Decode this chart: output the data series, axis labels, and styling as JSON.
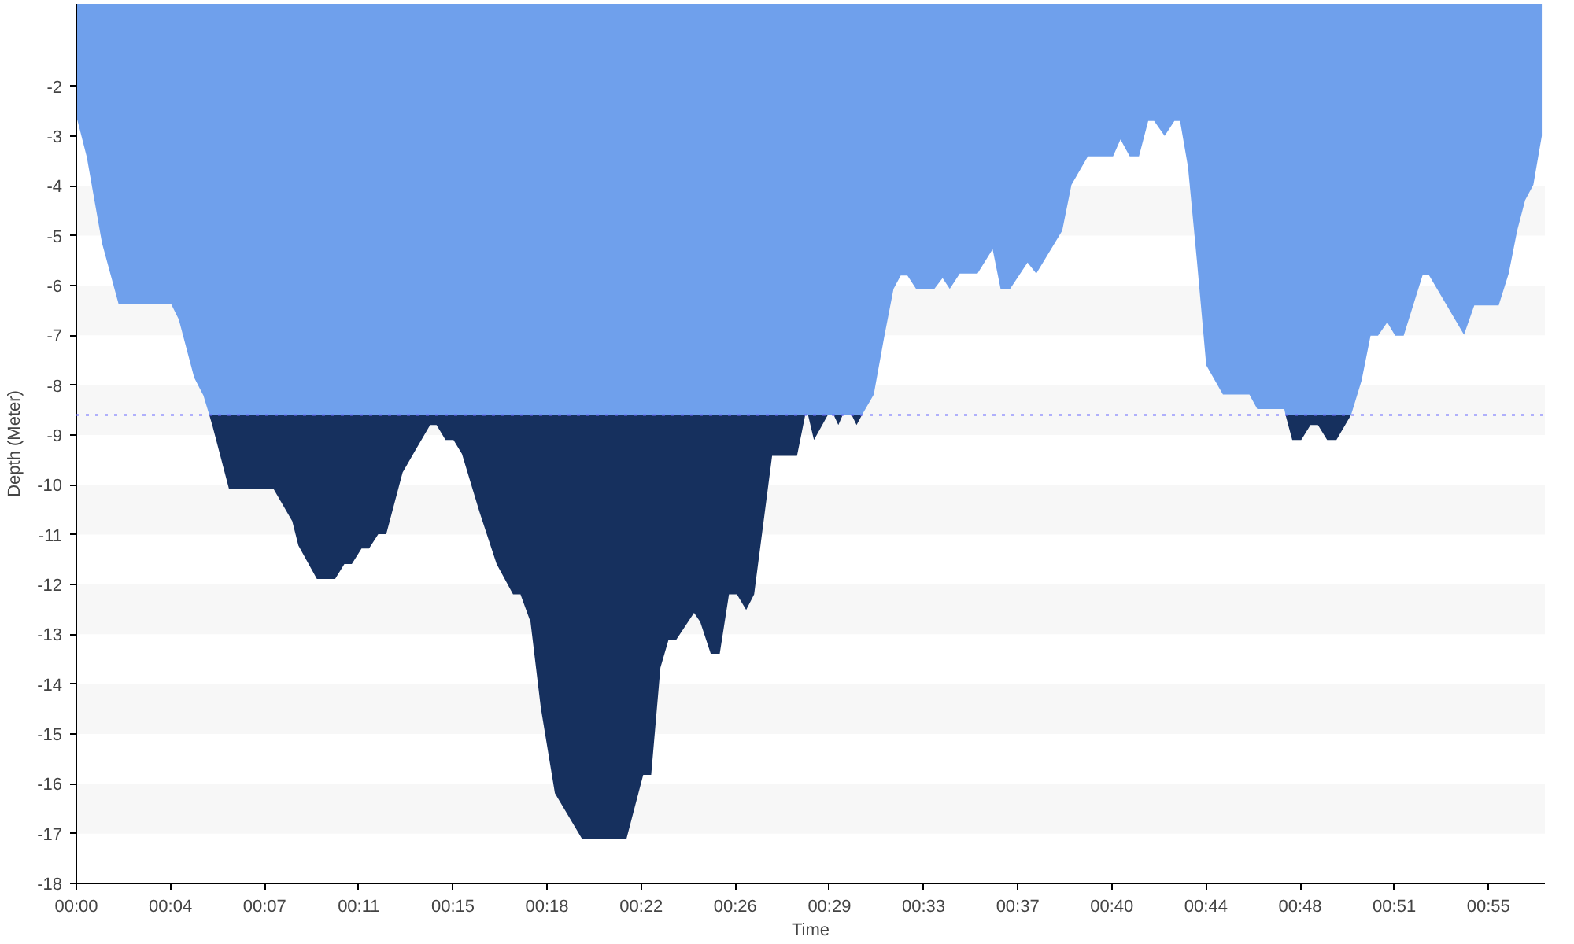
{
  "chart_data": {
    "type": "area",
    "xlabel": "Time",
    "ylabel": "Depth (Meter)",
    "xlim": [
      0,
      57.2
    ],
    "ylim": [
      -18,
      -0.35
    ],
    "xticks": [
      {
        "value": 0,
        "label": "00:00"
      },
      {
        "value": 3.667,
        "label": "00:04"
      },
      {
        "value": 7.333,
        "label": "00:07"
      },
      {
        "value": 11,
        "label": "00:11"
      },
      {
        "value": 14.667,
        "label": "00:15"
      },
      {
        "value": 18.333,
        "label": "00:18"
      },
      {
        "value": 22,
        "label": "00:22"
      },
      {
        "value": 25.667,
        "label": "00:26"
      },
      {
        "value": 29.333,
        "label": "00:29"
      },
      {
        "value": 33,
        "label": "00:33"
      },
      {
        "value": 36.667,
        "label": "00:37"
      },
      {
        "value": 40.333,
        "label": "00:40"
      },
      {
        "value": 44,
        "label": "00:44"
      },
      {
        "value": 47.667,
        "label": "00:48"
      },
      {
        "value": 51.333,
        "label": "00:51"
      },
      {
        "value": 55,
        "label": "00:55"
      }
    ],
    "yticks": [
      -18,
      -17,
      -16,
      -15,
      -14,
      -13,
      -12,
      -11,
      -10,
      -9,
      -8,
      -7,
      -6,
      -5,
      -4,
      -3,
      -2
    ],
    "grid": false,
    "ref_lines": [
      {
        "axis": "y",
        "value": -8.6,
        "color": "#6b6bff",
        "line_style": "dotted"
      }
    ],
    "bands": [
      {
        "axis": "y",
        "from": -5,
        "to": -4,
        "color": "#f7f7f7"
      },
      {
        "axis": "y",
        "from": -7,
        "to": -6,
        "color": "#f7f7f7"
      },
      {
        "axis": "y",
        "from": -9,
        "to": -8,
        "color": "#f7f7f7"
      },
      {
        "axis": "y",
        "from": -11,
        "to": -10,
        "color": "#f7f7f7"
      },
      {
        "axis": "y",
        "from": -13,
        "to": -12,
        "color": "#f7f7f7"
      },
      {
        "axis": "y",
        "from": -15,
        "to": -14,
        "color": "#f7f7f7"
      },
      {
        "axis": "y",
        "from": -17,
        "to": -16,
        "color": "#f7f7f7"
      }
    ],
    "series": [
      {
        "color": "#6fa0ec",
        "x": [
          0,
          0.41,
          1.0,
          1.65,
          3.7,
          3.99,
          4.59,
          4.95,
          5.18,
          30.6,
          31.06,
          31.46,
          31.83,
          32.11,
          32.37,
          32.71,
          33.42,
          33.74,
          34.02,
          34.41,
          35.1,
          35.69,
          36.0,
          36.37,
          37.05,
          37.39,
          38.4,
          38.76,
          39.4,
          40.38,
          40.67,
          41.03,
          41.39,
          41.75,
          41.98,
          42.39,
          42.77,
          42.99,
          43.3,
          43.65,
          44.01,
          44.66,
          45.69,
          46.0,
          47.05,
          47.1,
          49.65,
          50.06,
          50.41,
          50.7,
          51.06,
          51.37,
          51.7,
          52.44,
          52.68,
          54.05,
          54.45,
          55.4,
          55.79,
          56.12,
          56.43,
          56.75,
          57.08
        ],
        "values": [
          -2.6,
          -3.43,
          -5.15,
          -6.38,
          -6.38,
          -6.68,
          -7.85,
          -8.21,
          -8.6,
          -8.6,
          -8.19,
          -7.05,
          -6.07,
          -5.8,
          -5.8,
          -6.07,
          -6.07,
          -5.85,
          -6.07,
          -5.76,
          -5.76,
          -5.27,
          -6.07,
          -6.07,
          -5.54,
          -5.76,
          -4.9,
          -3.98,
          -3.41,
          -3.41,
          -3.07,
          -3.41,
          -3.41,
          -2.7,
          -2.7,
          -3.0,
          -2.7,
          -2.7,
          -3.62,
          -5.52,
          -7.6,
          -8.19,
          -8.19,
          -8.48,
          -8.48,
          -8.6,
          -8.6,
          -7.91,
          -7.01,
          -7.01,
          -6.74,
          -7.01,
          -7.01,
          -5.79,
          -5.79,
          -6.99,
          -6.4,
          -6.4,
          -5.76,
          -4.9,
          -4.29,
          -3.98,
          -3.0
        ]
      },
      {
        "color": "#16305e",
        "x": [
          5.18,
          5.31,
          5.95,
          7.69,
          8.41,
          8.65,
          9.37,
          10.08,
          10.44,
          10.73,
          11.11,
          11.4,
          11.76,
          12.07,
          12.71,
          13.19,
          13.78,
          14.03,
          14.38,
          14.69,
          15.02,
          15.7,
          16.37,
          17.01,
          17.3,
          17.69,
          18.09,
          18.64,
          19.69,
          21.43,
          22.08,
          22.39,
          22.75,
          23.06,
          23.35,
          24.06,
          24.3,
          24.71,
          25.06,
          25.42,
          25.73,
          26.09,
          26.4,
          27.1,
          28.07,
          28.39,
          28.5,
          28.73,
          29.27,
          29.5,
          29.68,
          29.85,
          30.2,
          30.39,
          30.6,
          null,
          47.1,
          47.36,
          47.71,
          48.07,
          48.36,
          48.72,
          49.08,
          49.65
        ],
        "values": [
          -8.6,
          -8.83,
          -10.09,
          -10.09,
          -10.73,
          -11.22,
          -11.89,
          -11.89,
          -11.59,
          -11.59,
          -11.28,
          -11.28,
          -10.99,
          -10.99,
          -9.75,
          -9.32,
          -8.8,
          -8.8,
          -9.1,
          -9.1,
          -9.38,
          -10.54,
          -11.59,
          -12.2,
          -12.2,
          -12.75,
          -14.47,
          -16.19,
          -17.1,
          -17.1,
          -15.82,
          -15.82,
          -13.67,
          -13.12,
          -13.12,
          -12.57,
          -12.75,
          -13.39,
          -13.39,
          -12.2,
          -12.2,
          -12.51,
          -12.2,
          -9.42,
          -9.42,
          -8.6,
          -8.6,
          -9.1,
          -8.6,
          -8.6,
          -8.8,
          -8.6,
          -8.6,
          -8.8,
          -8.6,
          null,
          -8.6,
          -9.1,
          -9.1,
          -8.8,
          -8.8,
          -9.1,
          -9.1,
          -8.6
        ]
      }
    ]
  }
}
